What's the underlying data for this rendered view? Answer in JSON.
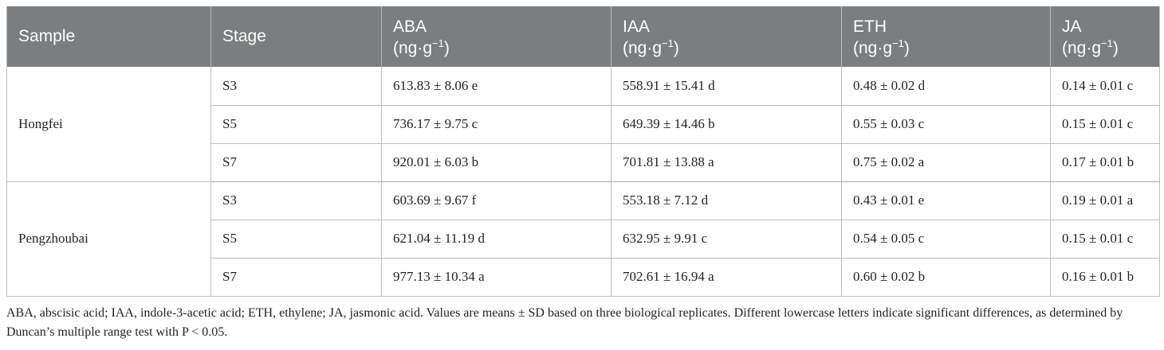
{
  "table": {
    "headers": [
      {
        "label": "Sample",
        "unit": ""
      },
      {
        "label": "Stage",
        "unit": ""
      },
      {
        "label": "ABA",
        "unit": "(ng·g",
        "sup": "−1",
        "close": ")"
      },
      {
        "label": "IAA",
        "unit": "(ng·g",
        "sup": "−1",
        "close": ")"
      },
      {
        "label": "ETH",
        "unit": "(ng·g",
        "sup": "−1",
        "close": ")"
      },
      {
        "label": "JA",
        "unit": "(ng·g",
        "sup": "−1",
        "close": ")"
      }
    ],
    "groups": [
      {
        "sample": "Hongfei",
        "rows": [
          {
            "stage": "S3",
            "aba": "613.83 ± 8.06 e",
            "iaa": "558.91 ± 15.41 d",
            "eth": "0.48 ± 0.02 d",
            "ja": "0.14 ± 0.01 c"
          },
          {
            "stage": "S5",
            "aba": "736.17 ± 9.75 c",
            "iaa": "649.39 ± 14.46 b",
            "eth": "0.55 ± 0.03 c",
            "ja": "0.15 ± 0.01 c"
          },
          {
            "stage": "S7",
            "aba": "920.01 ± 6.03 b",
            "iaa": "701.81 ± 13.88 a",
            "eth": "0.75 ± 0.02 a",
            "ja": "0.17 ± 0.01 b"
          }
        ]
      },
      {
        "sample": "Pengzhoubai",
        "rows": [
          {
            "stage": "S3",
            "aba": "603.69 ± 9.67 f",
            "iaa": "553.18 ± 7.12 d",
            "eth": "0.43 ± 0.01 e",
            "ja": "0.19 ± 0.01 a"
          },
          {
            "stage": "S5",
            "aba": "621.04 ± 11.19 d",
            "iaa": "632.95 ± 9.91 c",
            "eth": "0.54 ± 0.05 c",
            "ja": "0.15 ± 0.01 c"
          },
          {
            "stage": "S7",
            "aba": "977.13 ± 10.34 a",
            "iaa": "702.61 ± 16.94 a",
            "eth": "0.60 ± 0.02 b",
            "ja": "0.16 ± 0.01 b"
          }
        ]
      }
    ]
  },
  "footnote": "ABA, abscisic acid; IAA, indole-3-acetic acid; ETH, ethylene; JA, jasmonic acid. Values are means ± SD based on three biological replicates. Different lowercase letters indicate significant differences, as determined by Duncan’s multiple range test with P < 0.05.",
  "colors": {
    "header_bg": "#7b7d7e",
    "header_text": "#ffffff",
    "border": "#bdbdbd"
  }
}
